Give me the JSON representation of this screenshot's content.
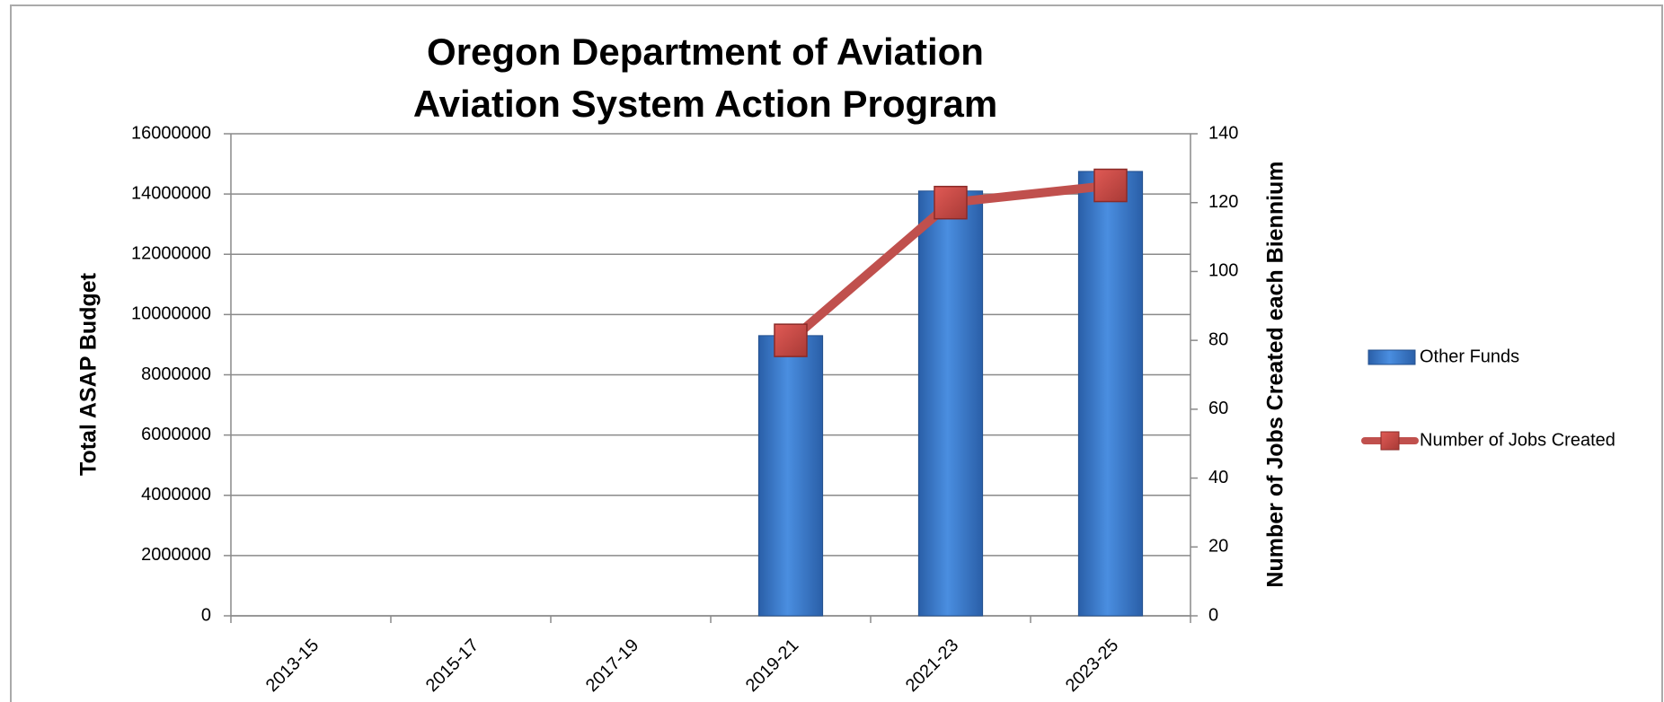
{
  "chart_data": {
    "type": "bar-line",
    "title": [
      "Oregon Department of Aviation",
      "Aviation System Action Program"
    ],
    "ylabel": "Total ASAP Budget",
    "y2label": "Number of Jobs Created each Biennium",
    "categories": [
      "2013-15",
      "2015-17",
      "2017-19",
      "2019-21",
      "2021-23",
      "2023-25"
    ],
    "series": [
      {
        "name": "Other Funds",
        "type": "bar",
        "color": "#3a78c8",
        "values": [
          null,
          null,
          null,
          9300000,
          14100000,
          14750000
        ]
      },
      {
        "name": "Number of Jobs Created",
        "type": "line",
        "axis": "y2",
        "color": "#c0504d",
        "values": [
          null,
          null,
          null,
          80,
          120,
          125
        ]
      }
    ],
    "ylim": [
      0,
      16000000
    ],
    "yticks": [
      0,
      2000000,
      4000000,
      6000000,
      8000000,
      10000000,
      12000000,
      14000000,
      16000000
    ],
    "y2lim": [
      0,
      140
    ],
    "y2ticks": [
      0,
      20,
      40,
      60,
      80,
      100,
      120,
      140
    ],
    "grid": true,
    "legend": "right"
  }
}
